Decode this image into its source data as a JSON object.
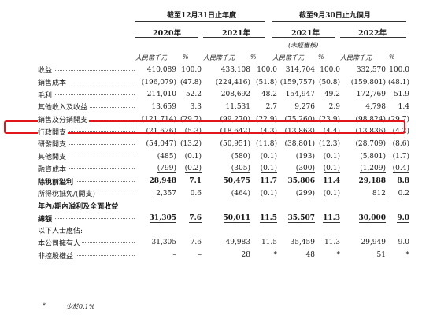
{
  "header": {
    "group_fy": "截至12月31日止年度",
    "group_9m": "截至9月30日止九個月",
    "years": [
      "2020年",
      "2021年",
      "2021年",
      "2022年"
    ],
    "unaudited": "(未經審核)",
    "unit_rmb": "人民幣千元",
    "unit_pct": "%"
  },
  "rows": [
    {
      "label": "收益",
      "vals": [
        "410,089",
        "100.0",
        "433,108",
        "100.0",
        "314,704",
        "100.0",
        "332,570",
        "100.0"
      ],
      "dots": true,
      "bold": false,
      "indent": 0
    },
    {
      "label": "銷售成本",
      "vals": [
        "(196,079)",
        "(47.8)",
        "(224,416)",
        "(51.8)",
        "(159,757)",
        "(50.8)",
        "(159,801)",
        "(48.1)"
      ],
      "dots": true,
      "bold": false,
      "indent": 0,
      "underline": true
    },
    {
      "label": "毛利",
      "vals": [
        "214,010",
        "52.2",
        "208,692",
        "48.2",
        "154,947",
        "49.2",
        "172,769",
        "51.9"
      ],
      "dots": true,
      "bold": false,
      "indent": 0
    },
    {
      "label": "其他收入及收益",
      "vals": [
        "13,659",
        "3.3",
        "11,531",
        "2.7",
        "9,276",
        "2.9",
        "4,798",
        "1.4"
      ],
      "dots": true,
      "bold": false,
      "indent": 0
    },
    {
      "label": "銷售及分銷開支",
      "vals": [
        "(121,714)",
        "(29.7)",
        "(99,270)",
        "(22.9)",
        "(75,260)",
        "(23.9)",
        "(98,824)",
        "(29.7)"
      ],
      "dots": true,
      "bold": false,
      "indent": 0
    },
    {
      "label": "行政開支",
      "vals": [
        "(21,676)",
        "(5.3)",
        "(18,642)",
        "(4.3)",
        "(13,863)",
        "(4.4)",
        "(13,836)",
        "(4.2)"
      ],
      "dots": true,
      "bold": false,
      "indent": 0
    },
    {
      "label": "研發開支",
      "vals": [
        "(54,047)",
        "(13.2)",
        "(50,951)",
        "(11.8)",
        "(38,801)",
        "(12.3)",
        "(28,709)",
        "(8.6)"
      ],
      "dots": true,
      "bold": false,
      "indent": 0
    },
    {
      "label": "其他開支",
      "vals": [
        "(485)",
        "(0.1)",
        "(580)",
        "(0.1)",
        "(193)",
        "(0.1)",
        "(5,801)",
        "(1.7)"
      ],
      "dots": true,
      "bold": false,
      "indent": 0
    },
    {
      "label": "融資成本",
      "vals": [
        "(799)",
        "(0.2)",
        "(305)",
        "(0.1)",
        "(300)",
        "(0.1)",
        "(1,209)",
        "(0.4)"
      ],
      "dots": true,
      "bold": false,
      "indent": 0,
      "underline": true
    },
    {
      "label": "除稅前溢利",
      "vals": [
        "28,948",
        "7.1",
        "50,475",
        "11.7",
        "35,806",
        "11.4",
        "29,188",
        "8.8"
      ],
      "dots": true,
      "bold": true,
      "indent": 0
    },
    {
      "label": "所得稅抵免/(開支)",
      "vals": [
        "2,357",
        "0.6",
        "(464)",
        "(0.1)",
        "(299)",
        "(0.1)",
        "812",
        "0.2"
      ],
      "dots": true,
      "bold": false,
      "indent": 0,
      "underline": true
    },
    {
      "label": "年內/期內溢利及全面收益",
      "vals": [
        "",
        "",
        "",
        "",
        "",
        "",
        "",
        ""
      ],
      "dots": false,
      "bold": true,
      "indent": 0
    },
    {
      "label": "總額",
      "vals": [
        "31,305",
        "7.6",
        "50,011",
        "11.5",
        "35,507",
        "11.3",
        "30,000",
        "9.0"
      ],
      "dots": true,
      "bold": true,
      "indent": 1,
      "underline": true
    },
    {
      "label": "以下人士應佔:",
      "vals": [
        "",
        "",
        "",
        "",
        "",
        "",
        "",
        ""
      ],
      "dots": false,
      "bold": false,
      "indent": 0
    },
    {
      "label": "本公司擁有人",
      "vals": [
        "31,305",
        "7.6",
        "49,983",
        "11.5",
        "35,459",
        "11.3",
        "29,949",
        "9.0"
      ],
      "dots": true,
      "bold": false,
      "indent": 2
    },
    {
      "label": "非控股權益",
      "vals": [
        "–",
        "–",
        "28",
        "*",
        "48",
        "*",
        "51",
        "*"
      ],
      "dots": true,
      "bold": false,
      "indent": 2
    }
  ],
  "footnote": {
    "mark": "*",
    "text": "少於0.1%"
  },
  "highlight_color": "#e0161b"
}
